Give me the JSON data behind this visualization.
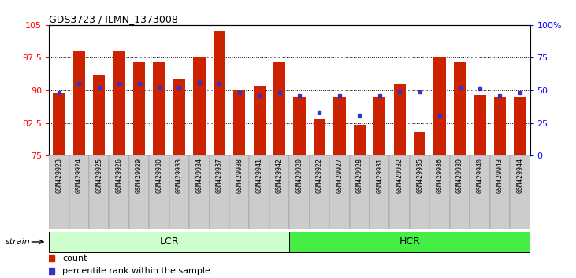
{
  "title": "GDS3723 / ILMN_1373008",
  "samples": [
    "GSM429923",
    "GSM429924",
    "GSM429925",
    "GSM429926",
    "GSM429929",
    "GSM429930",
    "GSM429933",
    "GSM429934",
    "GSM429937",
    "GSM429938",
    "GSM429941",
    "GSM429942",
    "GSM429920",
    "GSM429922",
    "GSM429927",
    "GSM429928",
    "GSM429931",
    "GSM429932",
    "GSM429935",
    "GSM429936",
    "GSM429939",
    "GSM429940",
    "GSM429943",
    "GSM429944"
  ],
  "bar_values": [
    89.5,
    99.0,
    93.5,
    99.0,
    96.5,
    96.5,
    92.5,
    97.8,
    103.5,
    90.0,
    91.0,
    96.5,
    88.5,
    83.5,
    88.5,
    82.0,
    88.5,
    91.5,
    80.5,
    97.5,
    96.5,
    89.0,
    88.5,
    88.5
  ],
  "blue_pct_values": [
    48,
    55,
    52,
    55,
    55,
    52,
    52,
    56,
    55,
    48,
    46,
    48,
    46,
    33,
    46,
    31,
    46,
    49,
    49,
    31,
    52,
    51,
    46,
    48
  ],
  "lcr_count": 12,
  "hcr_count": 12,
  "bar_color": "#cc2200",
  "blue_color": "#3333cc",
  "ylim_left": [
    75,
    105
  ],
  "ylim_right": [
    0,
    100
  ],
  "yticks_left": [
    75,
    82.5,
    90,
    97.5,
    105
  ],
  "yticks_right": [
    0,
    25,
    50,
    75,
    100
  ],
  "ytick_labels_left": [
    "75",
    "82.5",
    "90",
    "97.5",
    "105"
  ],
  "ytick_labels_right": [
    "0",
    "25",
    "50",
    "75",
    "100%"
  ],
  "legend_count_label": "count",
  "legend_percentile_label": "percentile rank within the sample",
  "strain_label": "strain",
  "lcr_color": "#ccffcc",
  "hcr_color": "#44ee44",
  "group_border_color": "#000000",
  "xtick_bg": "#cccccc"
}
